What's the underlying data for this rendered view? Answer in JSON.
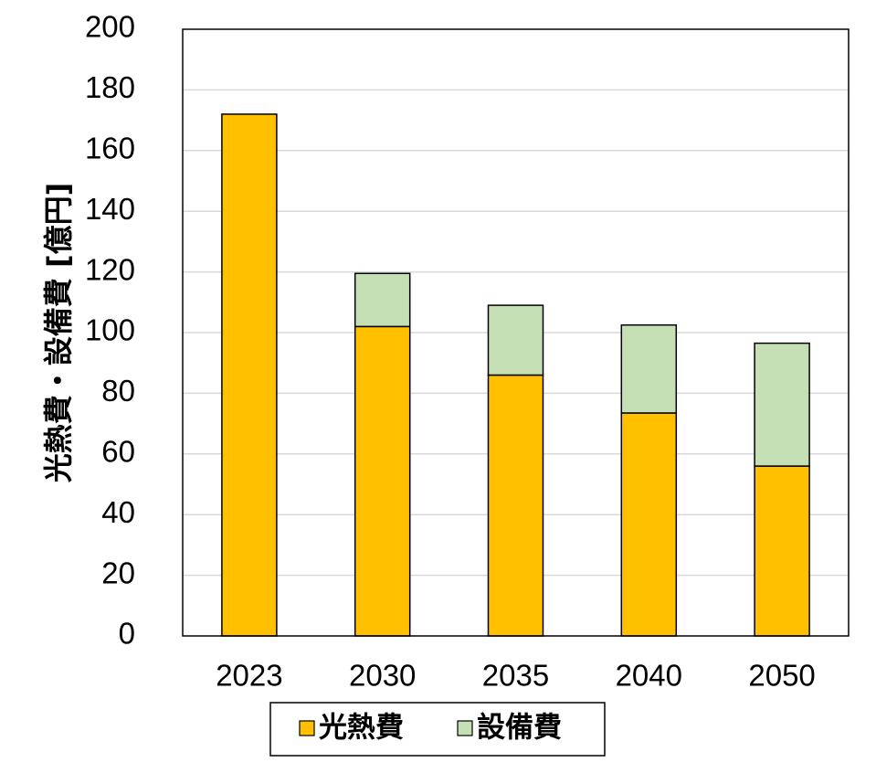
{
  "chart_data": {
    "type": "bar",
    "stacked": true,
    "categories": [
      "2023",
      "2030",
      "2035",
      "2040",
      "2050"
    ],
    "series": [
      {
        "name": "光熱費",
        "values": [
          172,
          102,
          86,
          73.5,
          56
        ],
        "color": "#FFC000"
      },
      {
        "name": "設備費",
        "values": [
          0,
          17.5,
          23,
          29,
          40.5
        ],
        "color": "#C5E0B4"
      }
    ],
    "ylabel": "光熱費・設備費 [億円]",
    "ylim": [
      0,
      200
    ],
    "yticks": [
      0,
      20,
      40,
      60,
      80,
      100,
      120,
      140,
      160,
      180,
      200
    ],
    "grid": true,
    "legend_position": "bottom"
  }
}
